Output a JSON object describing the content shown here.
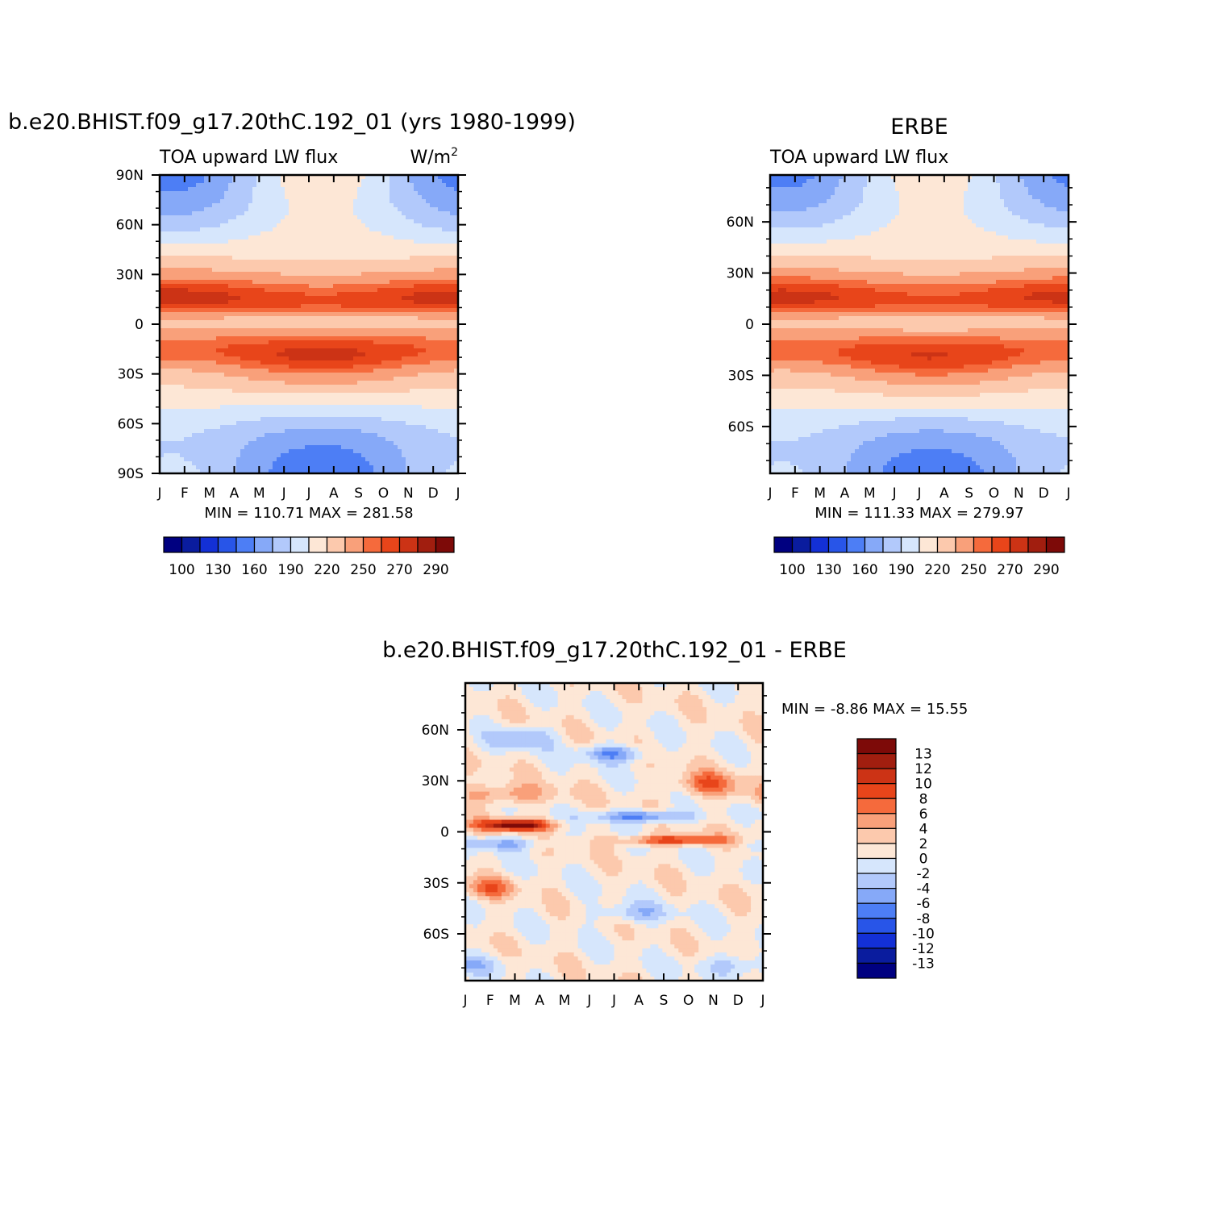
{
  "palette": {
    "model": [
      "#000080",
      "#0a1c9e",
      "#1330d6",
      "#2855e8",
      "#4d7ef5",
      "#86a9f8",
      "#b2c9fb",
      "#d6e6fc",
      "#fde7d6",
      "#fcc9ad",
      "#f9a07a",
      "#f56a3c",
      "#e8451a",
      "#cc3315",
      "#a11e0f",
      "#7d0a08"
    ],
    "diff": [
      "#000080",
      "#0a1c9e",
      "#1330d6",
      "#2855e8",
      "#4d7ef5",
      "#86a9f8",
      "#b2c9fb",
      "#d6e6fc",
      "#fde7d6",
      "#fcc9ad",
      "#f9a07a",
      "#f56a3c",
      "#e8451a",
      "#cc3315",
      "#a11e0f",
      "#7d0a08"
    ]
  },
  "chart_data": [
    {
      "id": "model",
      "type": "heatmap",
      "title": "b.e20.BHIST.f09_g17.20thC.192_01 (yrs 1980-1999)",
      "left_string": "TOA upward LW flux",
      "units_base": "W/m",
      "units_exp": "2",
      "stats": "MIN =  110.71 MAX =  281.58",
      "min": 110.71,
      "max": 281.58,
      "x_ticks": [
        "J",
        "F",
        "M",
        "A",
        "M",
        "J",
        "J",
        "A",
        "S",
        "O",
        "N",
        "D",
        "J"
      ],
      "y_ticks": [
        {
          "lat": 90,
          "label": "90N"
        },
        {
          "lat": 60,
          "label": "60N"
        },
        {
          "lat": 30,
          "label": "30N"
        },
        {
          "lat": 0,
          "label": "0"
        },
        {
          "lat": -30,
          "label": "30S"
        },
        {
          "lat": -60,
          "label": "60S"
        },
        {
          "lat": -90,
          "label": "90S"
        }
      ],
      "ylim": [
        -90,
        90
      ],
      "levels": [
        100,
        115,
        130,
        145,
        160,
        175,
        190,
        205,
        220,
        235,
        250,
        260,
        270,
        280,
        290
      ],
      "colorbar_labels": [
        "100",
        "130",
        "160",
        "190",
        "220",
        "250",
        "270",
        "290"
      ]
    },
    {
      "id": "obs",
      "type": "heatmap",
      "title": "ERBE",
      "left_string": "TOA upward LW flux",
      "stats": "MIN =  111.33 MAX =  279.97",
      "min": 111.33,
      "max": 279.97,
      "x_ticks": [
        "J",
        "F",
        "M",
        "A",
        "M",
        "J",
        "J",
        "A",
        "S",
        "O",
        "N",
        "D",
        "J"
      ],
      "y_ticks": [
        {
          "lat": 60,
          "label": "60N"
        },
        {
          "lat": 30,
          "label": "30N"
        },
        {
          "lat": 0,
          "label": "0"
        },
        {
          "lat": -30,
          "label": "30S"
        },
        {
          "lat": -60,
          "label": "60S"
        }
      ],
      "ylim": [
        -87.5,
        87.5
      ],
      "levels": [
        100,
        115,
        130,
        145,
        160,
        175,
        190,
        205,
        220,
        235,
        250,
        260,
        270,
        280,
        290
      ],
      "colorbar_labels": [
        "100",
        "130",
        "160",
        "190",
        "220",
        "250",
        "270",
        "290"
      ]
    },
    {
      "id": "diff",
      "type": "heatmap",
      "title": "b.e20.BHIST.f09_g17.20thC.192_01 - ERBE",
      "stats": "MIN =   -8.86 MAX =   15.55",
      "min": -8.86,
      "max": 15.55,
      "x_ticks": [
        "J",
        "F",
        "M",
        "A",
        "M",
        "J",
        "J",
        "A",
        "S",
        "O",
        "N",
        "D",
        "J"
      ],
      "y_ticks": [
        {
          "lat": 60,
          "label": "60N"
        },
        {
          "lat": 30,
          "label": "30N"
        },
        {
          "lat": 0,
          "label": "0"
        },
        {
          "lat": -30,
          "label": "30S"
        },
        {
          "lat": -60,
          "label": "60S"
        }
      ],
      "ylim": [
        -87.5,
        87.5
      ],
      "levels": [
        -13,
        -12,
        -10,
        -8,
        -6,
        -4,
        -2,
        0,
        2,
        4,
        6,
        8,
        10,
        12,
        13
      ],
      "colorbar_labels": [
        "13",
        "12",
        "10",
        "8",
        "6",
        "4",
        "2",
        "0",
        "-2",
        "-4",
        "-6",
        "-8",
        "-10",
        "-12",
        "-13"
      ]
    }
  ]
}
